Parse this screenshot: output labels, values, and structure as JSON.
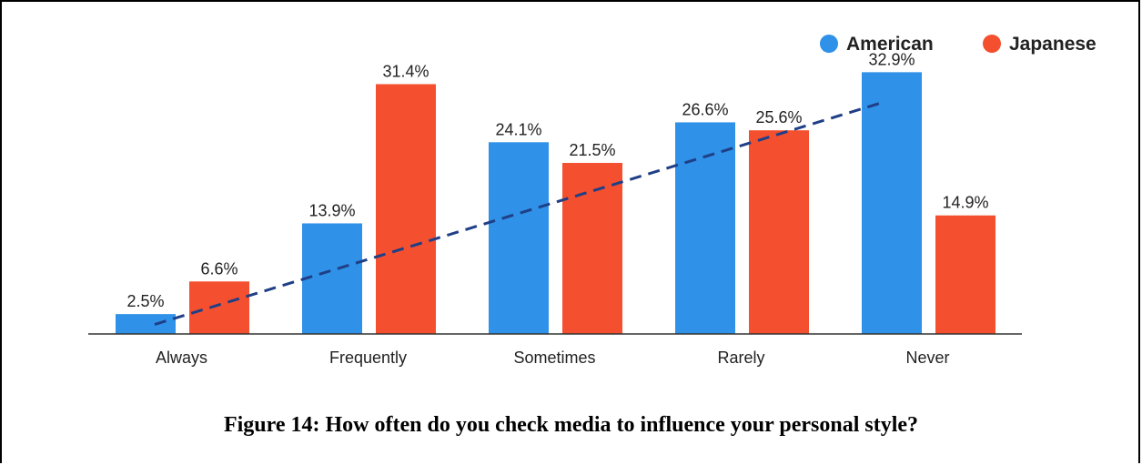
{
  "caption": "Figure 14: How often do you check media to influence your personal style?",
  "colors": {
    "american": "#2f91e8",
    "japanese": "#f4502f",
    "trend": "#1f3f86",
    "axis": "#333333"
  },
  "chart_data": {
    "type": "bar",
    "categories": [
      "Always",
      "Frequently",
      "Sometimes",
      "Rarely",
      "Never"
    ],
    "series": [
      {
        "name": "American",
        "values": [
          2.5,
          13.9,
          24.1,
          26.6,
          32.9
        ],
        "labels": [
          "2.5%",
          "13.9%",
          "24.1%",
          "26.6%",
          "32.9%"
        ]
      },
      {
        "name": "Japanese",
        "values": [
          6.6,
          31.4,
          21.5,
          25.6,
          14.9
        ],
        "labels": [
          "6.6%",
          "31.4%",
          "21.5%",
          "25.6%",
          "14.9%"
        ]
      }
    ],
    "trendline": {
      "series": "American",
      "style": "dashed",
      "from": {
        "category": "Always",
        "value": 1.2
      },
      "to": {
        "category": "Never",
        "value": 29.1
      }
    },
    "ylim": [
      0,
      35
    ],
    "grid": false,
    "legend": "top-right"
  }
}
